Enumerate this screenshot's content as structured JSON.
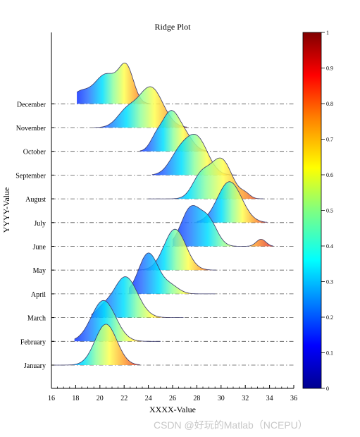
{
  "chart_data": {
    "type": "ridge",
    "title": "Ridge Plot",
    "xlabel": "XXXX-Value",
    "ylabel": "YYYY-Value",
    "xlim": [
      16,
      36
    ],
    "xticks": [
      "16",
      "18",
      "20",
      "22",
      "24",
      "26",
      "28",
      "30",
      "32",
      "34",
      "36"
    ],
    "categories": [
      "January",
      "February",
      "March",
      "April",
      "May",
      "June",
      "July",
      "August",
      "September",
      "October",
      "November",
      "December"
    ],
    "colorbar": {
      "range": [
        0,
        1
      ],
      "ticks": [
        "0",
        "0.1",
        "0.2",
        "0.3",
        "0.4",
        "0.5",
        "0.6",
        "0.7",
        "0.8",
        "0.9",
        "1"
      ],
      "colormap": "jet"
    },
    "series": [
      {
        "components": [
          [
            20.5,
            0.9,
            1.0
          ]
        ],
        "xmin": 16.1,
        "xmax": 23.3
      },
      {
        "components": [
          [
            20.3,
            1.0,
            0.95
          ]
        ],
        "xmin": 17.9,
        "xmax": 25.0
      },
      {
        "components": [
          [
            22.1,
            1.0,
            0.9
          ],
          [
            20.2,
            0.6,
            0.15
          ]
        ],
        "xmin": 19.3,
        "xmax": 26.9
      },
      {
        "components": [
          [
            24.0,
            0.8,
            1.0
          ],
          [
            25.8,
            0.7,
            0.2
          ]
        ],
        "xmin": 22.4,
        "xmax": 29.5
      },
      {
        "components": [
          [
            26.2,
            0.9,
            1.0
          ]
        ],
        "xmin": 23.0,
        "xmax": 29.6
      },
      {
        "components": [
          [
            27.5,
            0.8,
            0.8
          ],
          [
            29.0,
            0.7,
            0.5
          ],
          [
            33.3,
            0.4,
            0.15
          ]
        ],
        "xmin": 26.0,
        "xmax": 34.3
      },
      {
        "components": [
          [
            30.7,
            1.0,
            1.0
          ]
        ],
        "xmin": 28.0,
        "xmax": 33.8
      },
      {
        "components": [
          [
            30.0,
            0.9,
            0.95
          ],
          [
            28.3,
            0.7,
            0.5
          ],
          [
            32.0,
            0.4,
            0.1
          ]
        ],
        "xmin": 24.0,
        "xmax": 33.5
      },
      {
        "components": [
          [
            28.0,
            0.9,
            0.95
          ],
          [
            26.5,
            0.8,
            0.5
          ]
        ],
        "xmin": 24.3,
        "xmax": 31.3
      },
      {
        "components": [
          [
            25.8,
            0.7,
            1.0
          ],
          [
            27.0,
            0.7,
            0.4
          ],
          [
            24.6,
            0.5,
            0.3
          ]
        ],
        "xmin": 23.3,
        "xmax": 28.8
      },
      {
        "components": [
          [
            24.2,
            1.0,
            0.9
          ],
          [
            22.2,
            0.8,
            0.35
          ]
        ],
        "xmin": 19.5,
        "xmax": 27.2
      },
      {
        "components": [
          [
            22.2,
            0.6,
            0.95
          ],
          [
            20.5,
            1.0,
            0.85
          ],
          [
            18.3,
            0.7,
            0.3
          ]
        ],
        "xmin": 18.1,
        "xmax": 24.1
      }
    ]
  },
  "watermark": "CSDN @好玩的Matlab（NCEPU）"
}
